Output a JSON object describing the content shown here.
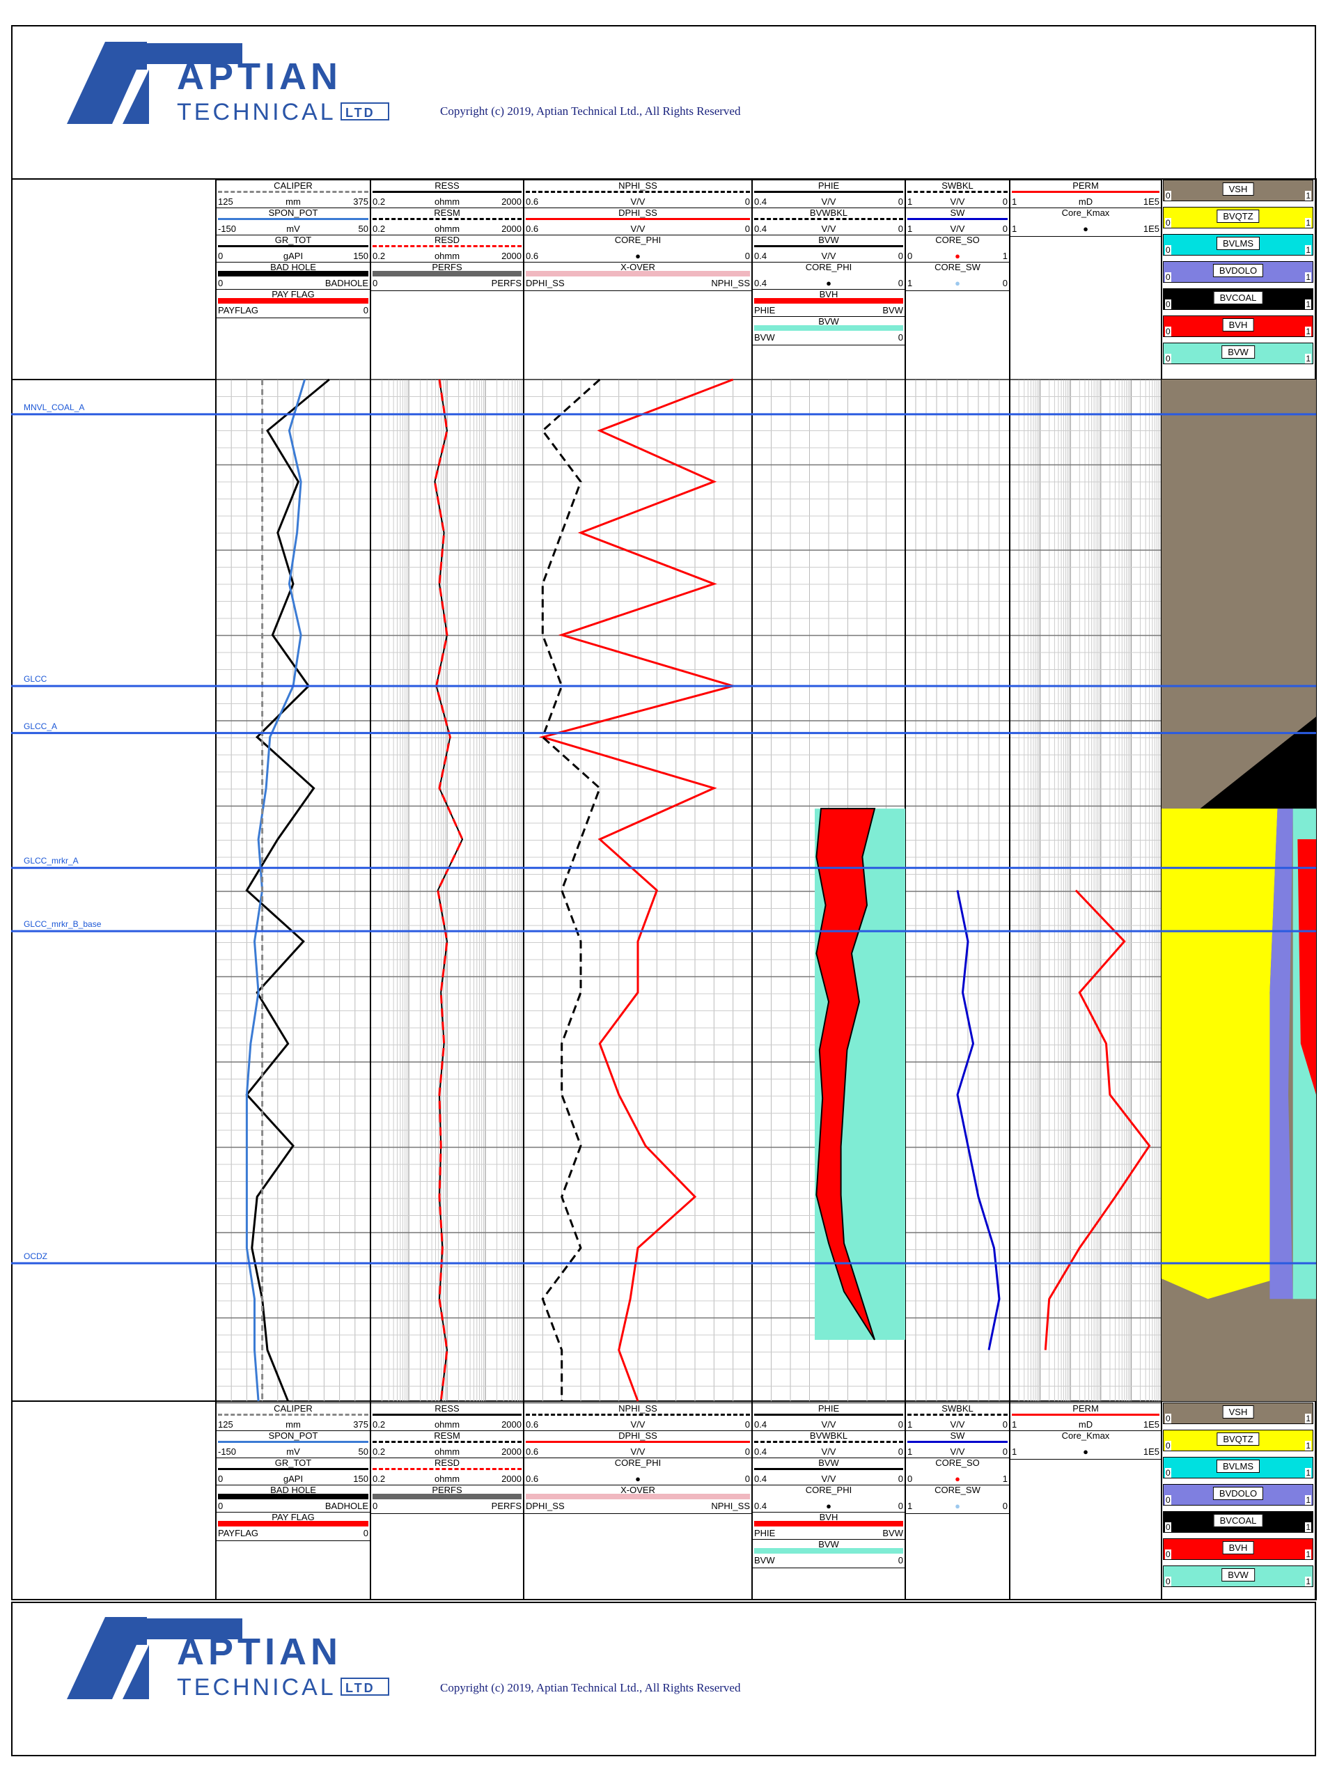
{
  "brand": {
    "name_top": "APTIAN",
    "name_bottom": "TECHNICAL",
    "suffix": "LTD",
    "color": "#2a55a8"
  },
  "copyright": "Copyright (c) 2019, Aptian Technical Ltd., All Rights Reserved",
  "markers": [
    "MNVL_COAL_A",
    "GLCC",
    "GLCC_A",
    "GLCC_mrkr_A",
    "GLCC_mrkr_B_base",
    "OCDZ"
  ],
  "tracks": {
    "t1": [
      {
        "name": "CALIPER",
        "lo": "125",
        "unit": "mm",
        "hi": "375",
        "color": "#888888",
        "style": "dash"
      },
      {
        "name": "SPON_POT",
        "lo": "-150",
        "unit": "mV",
        "hi": "50",
        "color": "#3b7bd4",
        "style": "solid"
      },
      {
        "name": "GR_TOT",
        "lo": "0",
        "unit": "gAPI",
        "hi": "150",
        "color": "#000000",
        "style": "solid"
      },
      {
        "name": "BAD HOLE",
        "lo": "0",
        "unit": "",
        "hi": "BADHOLE",
        "color": "#000000",
        "style": "fill"
      },
      {
        "name": "PAY FLAG",
        "lo": "PAYFLAG",
        "unit": "",
        "hi": "0",
        "color": "#ff0000",
        "style": "fill"
      }
    ],
    "t2": [
      {
        "name": "RESS",
        "lo": "0.2",
        "unit": "ohmm",
        "hi": "2000",
        "color": "#000000",
        "style": "solid"
      },
      {
        "name": "RESM",
        "lo": "0.2",
        "unit": "ohmm",
        "hi": "2000",
        "color": "#000000",
        "style": "dash"
      },
      {
        "name": "RESD",
        "lo": "0.2",
        "unit": "ohmm",
        "hi": "2000",
        "color": "#ff0000",
        "style": "dash"
      },
      {
        "name": "PERFS",
        "lo": "0",
        "unit": "",
        "hi": "PERFS",
        "color": "#666666",
        "style": "fill"
      }
    ],
    "t3": [
      {
        "name": "NPHI_SS",
        "lo": "0.6",
        "unit": "V/V",
        "hi": "0",
        "color": "#000000",
        "style": "dash"
      },
      {
        "name": "DPHI_SS",
        "lo": "0.6",
        "unit": "V/V",
        "hi": "0",
        "color": "#ff0000",
        "style": "solid"
      },
      {
        "name": "CORE_PHI",
        "lo": "0.6",
        "unit": "●",
        "hi": "0",
        "color": "#000000",
        "style": "none"
      },
      {
        "name": "X-OVER",
        "lo": "DPHI_SS",
        "unit": "",
        "hi": "NPHI_SS",
        "color": "#f0b8c0",
        "style": "fill"
      }
    ],
    "t4": [
      {
        "name": "PHIE",
        "lo": "0.4",
        "unit": "V/V",
        "hi": "0",
        "color": "#000000",
        "style": "solid"
      },
      {
        "name": "BVWBKL",
        "lo": "0.4",
        "unit": "V/V",
        "hi": "0",
        "color": "#000000",
        "style": "dash"
      },
      {
        "name": "BVW",
        "lo": "0.4",
        "unit": "V/V",
        "hi": "0",
        "color": "#000000",
        "style": "solid"
      },
      {
        "name": "CORE_PHI",
        "lo": "0.4",
        "unit": "●",
        "hi": "0",
        "color": "#000000",
        "style": "none"
      },
      {
        "name": "BVH",
        "lo": "PHIE",
        "unit": "",
        "hi": "BVW",
        "color": "#ff0000",
        "style": "fill"
      },
      {
        "name": "BVW",
        "lo": "BVW",
        "unit": "",
        "hi": "0",
        "color": "#7fecd4",
        "style": "fill"
      }
    ],
    "t5": [
      {
        "name": "SWBKL",
        "lo": "1",
        "unit": "V/V",
        "hi": "0",
        "color": "#000000",
        "style": "dash"
      },
      {
        "name": "SW",
        "lo": "1",
        "unit": "V/V",
        "hi": "0",
        "color": "#0000cc",
        "style": "solid"
      },
      {
        "name": "CORE_SO",
        "lo": "0",
        "unit": "●",
        "hi": "1",
        "color": "#ff0000",
        "style": "none"
      },
      {
        "name": "CORE_SW",
        "lo": "1",
        "unit": "●",
        "hi": "0",
        "color": "#9cc8ee",
        "style": "none"
      }
    ],
    "t6": [
      {
        "name": "PERM",
        "lo": "1",
        "unit": "mD",
        "hi": "1E5",
        "color": "#ff0000",
        "style": "solid"
      },
      {
        "name": "Core_Kmax",
        "lo": "1",
        "unit": "●",
        "hi": "1E5",
        "color": "#000000",
        "style": "none"
      }
    ],
    "t7": [
      {
        "name": "VSH",
        "lo": "0",
        "hi": "1",
        "color": "#8c7e6b"
      },
      {
        "name": "BVQTZ",
        "lo": "0",
        "hi": "1",
        "color": "#ffff00"
      },
      {
        "name": "BVLMS",
        "lo": "0",
        "hi": "1",
        "color": "#00e0e0"
      },
      {
        "name": "BVDOLO",
        "lo": "0",
        "hi": "1",
        "color": "#7f7fe0"
      },
      {
        "name": "BVCOAL",
        "lo": "0",
        "hi": "1",
        "color": "#000000"
      },
      {
        "name": "BVH",
        "lo": "0",
        "hi": "1",
        "color": "#ff0000"
      },
      {
        "name": "BVW",
        "lo": "0",
        "hi": "1",
        "color": "#7fecd4"
      }
    ]
  },
  "chart_data": {
    "type": "line",
    "title": "",
    "depth_samples": [
      0,
      0.05,
      0.1,
      0.15,
      0.2,
      0.25,
      0.3,
      0.35,
      0.4,
      0.45,
      0.5,
      0.55,
      0.6,
      0.65,
      0.7,
      0.75,
      0.8,
      0.85,
      0.9,
      0.95,
      1
    ],
    "series": [
      {
        "name": "GR_TOT",
        "values": [
          110,
          50,
          80,
          60,
          75,
          55,
          90,
          40,
          95,
          60,
          30,
          85,
          40,
          70,
          30,
          75,
          40,
          35,
          45,
          50,
          70
        ]
      },
      {
        "name": "SPON_POT",
        "values": [
          -35,
          -55,
          -40,
          -45,
          -55,
          -40,
          -50,
          -80,
          -85,
          -95,
          -90,
          -100,
          -95,
          -105,
          -110,
          -110,
          -110,
          -110,
          -100,
          -100,
          -95
        ]
      },
      {
        "name": "DPHI_SS",
        "values": [
          0.05,
          0.4,
          0.1,
          0.45,
          0.1,
          0.5,
          0.05,
          0.55,
          0.1,
          0.4,
          0.25,
          0.3,
          0.3,
          0.4,
          0.35,
          0.28,
          0.15,
          0.3,
          0.32,
          0.35,
          0.3
        ]
      },
      {
        "name": "NPHI_SS",
        "values": [
          0.4,
          0.55,
          0.45,
          0.5,
          0.55,
          0.55,
          0.5,
          0.55,
          0.4,
          0.45,
          0.5,
          0.45,
          0.45,
          0.5,
          0.5,
          0.45,
          0.5,
          0.45,
          0.55,
          0.5,
          0.5
        ]
      },
      {
        "name": "PERM",
        "values": [
          null,
          null,
          null,
          null,
          null,
          null,
          null,
          null,
          null,
          null,
          150,
          6000,
          200,
          1500,
          2000,
          40000,
          3000,
          200,
          20,
          15,
          null
        ]
      }
    ]
  }
}
